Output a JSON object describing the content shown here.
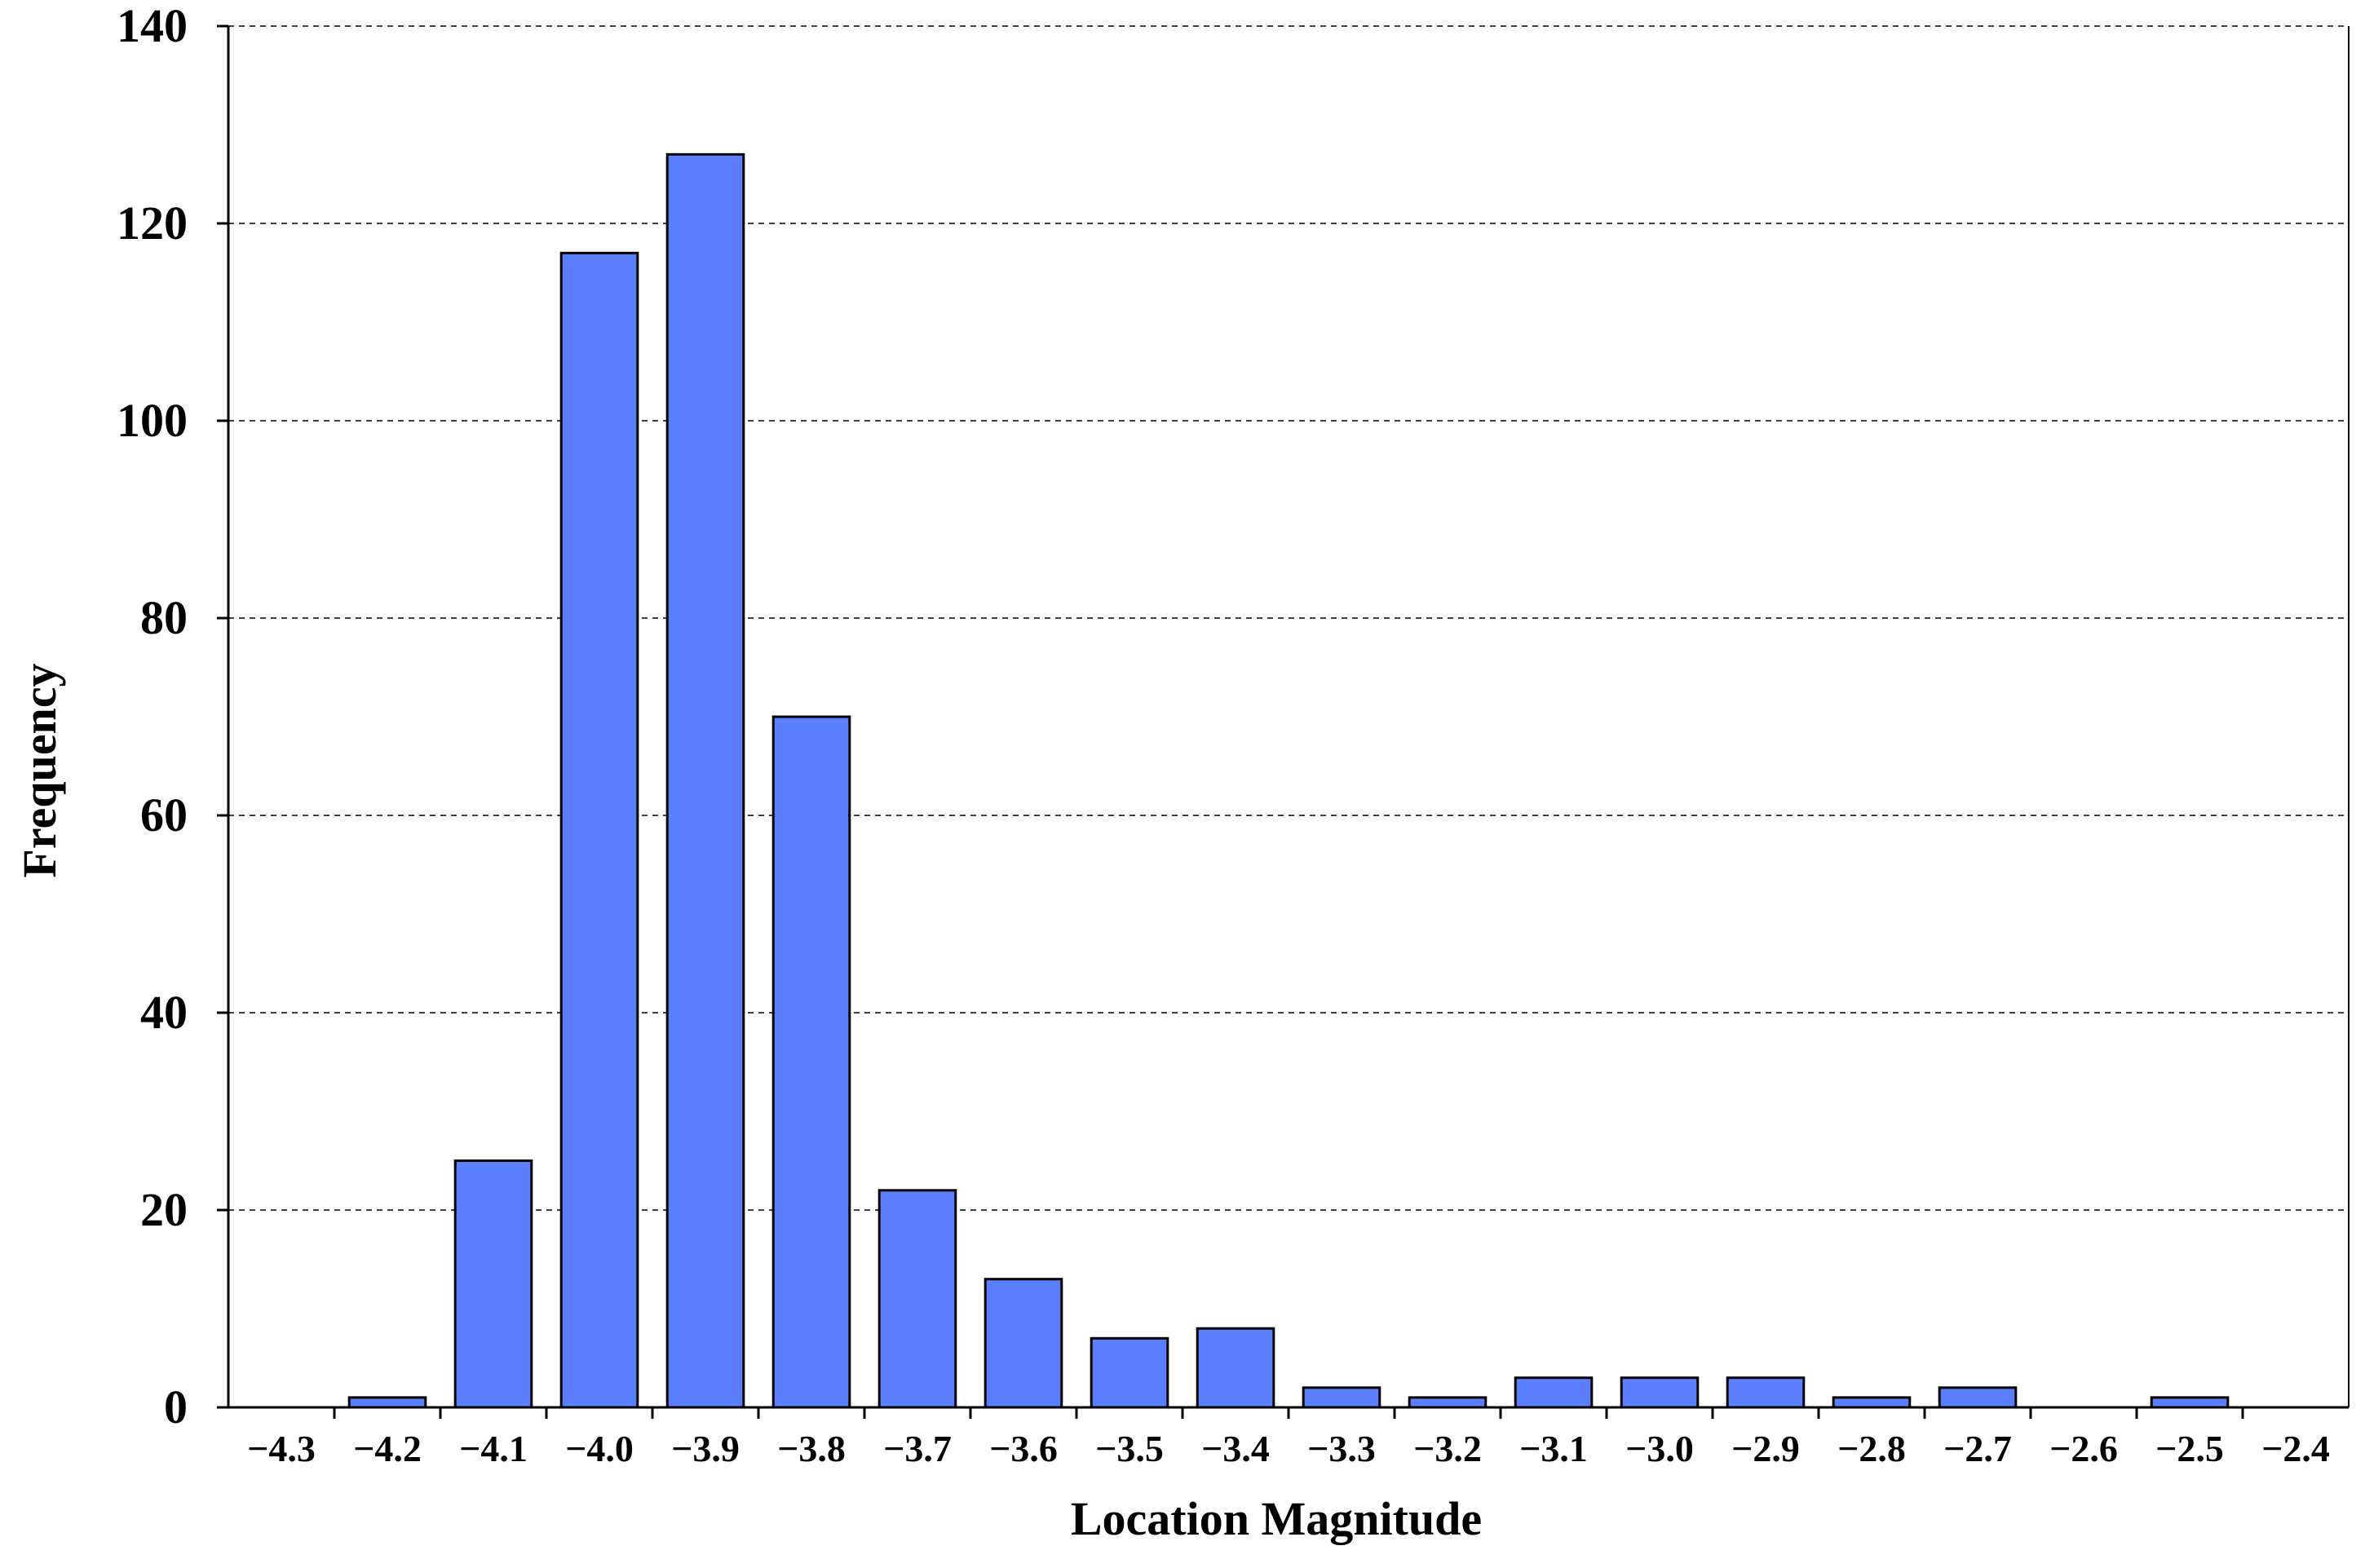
{
  "chart_data": {
    "type": "bar",
    "title": "",
    "xlabel": "Location Magnitude",
    "ylabel": "Frequency",
    "x_ticks": [
      "−4.3",
      "−4.2",
      "−4.1",
      "−4.0",
      "−3.9",
      "−3.8",
      "−3.7",
      "−3.6",
      "−3.5",
      "−3.4",
      "−3.3",
      "−3.2",
      "−3.1",
      "−3.0",
      "−2.9",
      "−2.8",
      "−2.7",
      "−2.6",
      "−2.5",
      "−2.4"
    ],
    "y_ticks": [
      "0",
      "20",
      "40",
      "60",
      "80",
      "100",
      "120",
      "140"
    ],
    "ylim": [
      0,
      140
    ],
    "grid": "horizontal dashed",
    "legend": "none",
    "bar_color": "#5b7fff",
    "bars": [
      {
        "x": -4.2,
        "value": 1
      },
      {
        "x": -4.1,
        "value": 25
      },
      {
        "x": -4.0,
        "value": 117
      },
      {
        "x": -3.9,
        "value": 127
      },
      {
        "x": -3.8,
        "value": 70
      },
      {
        "x": -3.7,
        "value": 22
      },
      {
        "x": -3.6,
        "value": 13
      },
      {
        "x": -3.5,
        "value": 7
      },
      {
        "x": -3.4,
        "value": 8
      },
      {
        "x": -3.3,
        "value": 2
      },
      {
        "x": -3.2,
        "value": 1
      },
      {
        "x": -3.1,
        "value": 3
      },
      {
        "x": -3.0,
        "value": 3
      },
      {
        "x": -2.9,
        "value": 3
      },
      {
        "x": -2.8,
        "value": 1
      },
      {
        "x": -2.7,
        "value": 2
      },
      {
        "x": -2.6,
        "value": 0
      },
      {
        "x": -2.5,
        "value": 1
      }
    ]
  }
}
